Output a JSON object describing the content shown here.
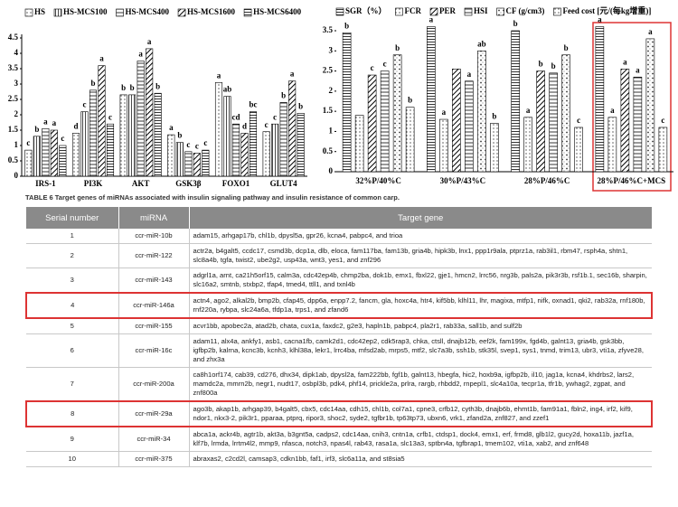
{
  "chart_data": [
    {
      "type": "bar",
      "categories": [
        "IRS-1",
        "PI3K",
        "AKT",
        "GSK3β",
        "FOXO1",
        "GLUT4"
      ],
      "ylim": [
        0,
        4.5
      ],
      "yticks": [
        0,
        0.5,
        1,
        1.5,
        2,
        2.5,
        3,
        3.5,
        4,
        4.5
      ],
      "series": [
        {
          "name": "HS",
          "color": "#000000",
          "values": [
            0.85,
            1.4,
            2.65,
            1.35,
            3.05,
            1.45
          ],
          "letters": [
            "c",
            "d",
            "b",
            "a",
            "a",
            "c"
          ]
        },
        {
          "name": "HS-MCS100",
          "color": "#000000",
          "values": [
            1.3,
            2.1,
            2.65,
            1.1,
            2.6,
            1.7
          ],
          "letters": [
            "b",
            "c",
            "b",
            "b",
            "ab",
            "c"
          ]
        },
        {
          "name": "HS-MCS400",
          "color": "#000000",
          "values": [
            1.55,
            2.8,
            3.75,
            0.8,
            1.7,
            2.4
          ],
          "letters": [
            "a",
            "b",
            "a",
            "c",
            "cd",
            "b"
          ]
        },
        {
          "name": "HS-MCS1600",
          "color": "#000000",
          "values": [
            1.5,
            3.6,
            4.15,
            0.75,
            1.4,
            3.1
          ],
          "letters": [
            "a",
            "a",
            "a",
            "c",
            "d",
            "a"
          ]
        },
        {
          "name": "HS-MCS6400",
          "color": "#000000",
          "values": [
            1.0,
            1.7,
            2.7,
            0.85,
            2.1,
            2.05
          ],
          "letters": [
            "c",
            "c",
            "b",
            "c",
            "bc",
            "b"
          ]
        }
      ]
    },
    {
      "type": "bar",
      "categories": [
        "32%P/40%C",
        "30%P/43%C",
        "28%P/46%C",
        "28%P/46%C+MCS"
      ],
      "ylim": [
        0,
        3.5
      ],
      "yticks": [
        0,
        0.5,
        1,
        1.5,
        2,
        2.5,
        3,
        3.5
      ],
      "series": [
        {
          "name": "SGR（%）",
          "color": "#000000",
          "values": [
            3.45,
            3.6,
            3.5,
            3.6
          ],
          "letters": [
            "b",
            "a",
            "b",
            "a"
          ]
        },
        {
          "name": "FCR",
          "color": "#000000",
          "values": [
            1.4,
            1.3,
            1.35,
            1.35
          ],
          "letters": [
            null,
            "a",
            "a",
            "a"
          ]
        },
        {
          "name": "PER",
          "color": "#000000",
          "values": [
            2.4,
            2.55,
            2.5,
            2.55
          ],
          "letters": [
            "c",
            null,
            "b",
            "a"
          ]
        },
        {
          "name": "HSI",
          "color": "#000000",
          "values": [
            2.5,
            2.25,
            2.45,
            2.35
          ],
          "letters": [
            "c",
            "a",
            "b",
            "a"
          ]
        },
        {
          "name": "CF (g/cm3)",
          "color": "#000000",
          "values": [
            2.9,
            3.0,
            2.9,
            3.3
          ],
          "letters": [
            "b",
            "ab",
            "b",
            "a"
          ]
        },
        {
          "name": "Feed cost [元/(每kg增重)]",
          "color": "#000000",
          "values": [
            1.6,
            1.2,
            1.1,
            1.1
          ],
          "letters": [
            "b",
            "b",
            "c",
            "c"
          ]
        }
      ]
    }
  ],
  "table": {
    "caption": "TABLE 6 Target genes of miRNAs associated with insulin signaling pathway and insulin resistance of common carp.",
    "header": [
      "Serial number",
      "miRNA",
      "Target gene"
    ],
    "rows": [
      [
        "1",
        "ccr-miR-10b",
        "adam15, arhgap17b, chl1b, dpysl5a, gpr26, kcna4, pabpc4, and trioa"
      ],
      [
        "2",
        "ccr-miR-122",
        "actr2a, b4galt5, ccdc17, csmd3b, dcp1a, dlb, eloca, fam117ba, fam13b, gria4b, hipk3b, lnx1, ppp1r9ala, ptprz1a, rab3il1, rbm47, rsph4a, shtn1, slc8a4b, tgfa, twist2, ube2g2, usp43a, wnt3, yes1, and znf296"
      ],
      [
        "3",
        "ccr-miR-143",
        "adgrl1a, arnt, ca21h5orf15, calm3a, cdc42ep4b, chmp2ba, dok1b, emx1, fbxl22, gje1, hmcn2, lrrc56, nrg3b, pals2a, pik3r3b, rsf1b.1, sec16b, sharpin, slc16a2, smtnb, stxbp2, tfap4, tmed4, ttll1, and txnl4b"
      ],
      [
        "4",
        "ccr-miR-146a",
        "actn4, ago2, alkal2b, bmp2b, cfap45, dpp6a, enpp7.2, fancm, gla, hoxc4a, htr4, kif5bb, klhl11, lhr, magixa, mtfp1, nifk, oxnad1, qki2, rab32a, rnf180b, rnf220a, rybpa, slc24a6a, tfdp1a, trps1, and zfand6"
      ],
      [
        "5",
        "ccr-miR-155",
        "acvr1bb, apobec2a, atad2b, chata, cux1a, faxdc2, g2e3, hapln1b, pabpc4, pla2r1, rab33a, sall1b, and sulf2b"
      ],
      [
        "6",
        "ccr-miR-16c",
        "adam11, alx4a, ankfy1, asb1, cacna1fb, camk2d1, cdc42ep2, cdk5rap3, chka, ctsll, dnajb12b, eef2k, fam199x, fgd4b, galnt13, gria4b, gsk3bb, igfbp2b, kalrna, kcnc3b, kcnh3, klhl38a, lekr1, lrrc4ba, mfsd2ab, mrps5, mtf2, slc7a3b, ssh1b, stk35l, svep1, sys1, tnmd, trim13, ubr3, vti1a, zfyve28, and zhx3a"
      ],
      [
        "7",
        "ccr-miR-200a",
        "ca8h1orf174, cab39, cd276, dhx34, dipk1ab, dpysl2a, fam222bb, fgf1b, galnt13, hbegfa, hic2, hoxb9a, igfbp2b, il10, jag1a, kcna4, khdrbs2, lars2, mamdc2a, mmrn2b, negr1, nudt17, osbpl3b, pdk4, phf14, prickle2a, prlra, rargb, rhbdd2, rnpepl1, slc4a10a, tecpr1a, tfr1b, ywhag2, zgpat, and znf800a"
      ],
      [
        "8",
        "ccr-miR-29a",
        "ago3b, akap1b, arhgap39, b4galt5, cbx5, cdc14aa, cdh15, chl1b, col7a1, cpne3, crfb12, cyth3b, dnajb6b, ehmt1b, fam91a1, fbln2, ing4, irf2, kif9, ndor1, nkx3-2, pik3r1, pparaa, ptprq, ripor3, shoc2, syde2, tgfbr1b, tp63tp73, ubxn6, vrk1, zfand2a, znf827, and zzef1"
      ],
      [
        "9",
        "ccr-miR-34",
        "abca1a, ackr4b, agtr1b, akt3a, b3gnt5a, cadps2, cdc14aa, cnih3, cntn1a, crfb1, ctdsp1, dock4, emx1, erf, frmd8, glb1l2, gucy2d, hoxa11b, jazf1a, klf7b, lrmda, lrrtm4l2, mmp9, nfasca, notch3, npas4l, rab43, rasa1a, slc13a3, sptbn4a, tgfbrap1, tmem102, vti1a, xab2, and znf648"
      ],
      [
        "10",
        "ccr-miR-375",
        "abraxas2, c2cd2l, camsap3, cdkn1bb, faf1, irf3, slc6a11a, and st8sia5"
      ]
    ]
  }
}
